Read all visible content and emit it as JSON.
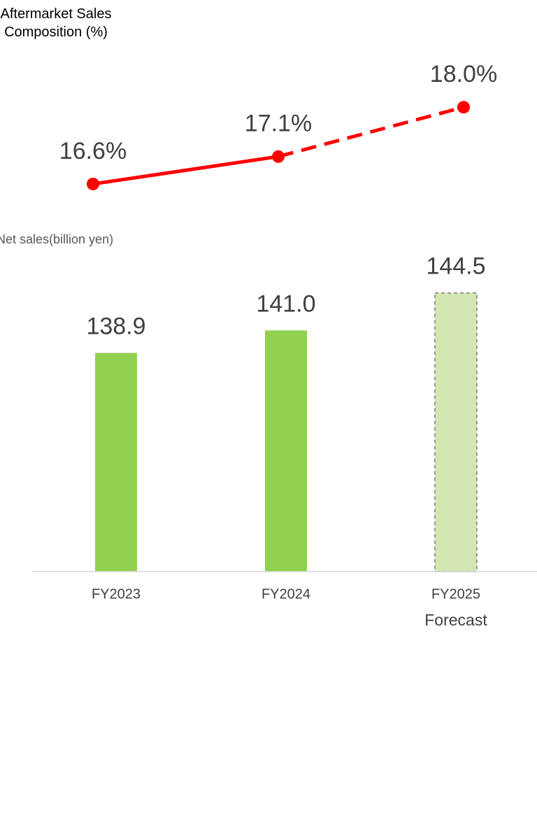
{
  "chart_data": [
    {
      "type": "line",
      "title": "Aftermarket Sales Composition (%)",
      "values": [
        16.6,
        17.1,
        18.0
      ],
      "value_labels": [
        "16.6%",
        "17.1%",
        "18.0%"
      ],
      "color": "#ff0000",
      "dashed": [
        false,
        false,
        true
      ],
      "ylim": [
        16,
        18.5
      ]
    },
    {
      "type": "bar",
      "ylabel": "Net sales(billion yen)",
      "categories": [
        "FY2023",
        "FY2024",
        "FY2025"
      ],
      "x_sublabels": [
        null,
        null,
        "Forecast"
      ],
      "values": [
        138.9,
        141.0,
        144.5
      ],
      "value_labels": [
        "138.9",
        "141.0",
        "144.5"
      ],
      "colors": [
        "#92d050",
        "#92d050",
        "#d3e6b3"
      ],
      "dashed": [
        false,
        false,
        true
      ],
      "ylim": [
        118.5,
        146.5
      ]
    }
  ]
}
